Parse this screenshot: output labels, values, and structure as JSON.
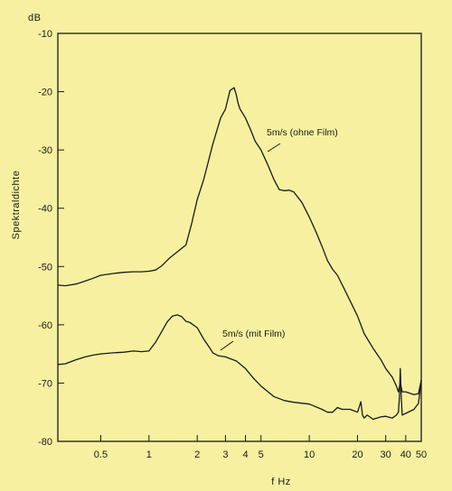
{
  "chart_data": {
    "type": "line",
    "title": "",
    "xlabel": "f  Hz",
    "ylabel": "Spektraldichte",
    "yunit": "dB",
    "x_scale": "log",
    "xlim": [
      0.27,
      50
    ],
    "ylim": [
      -80,
      -10
    ],
    "x_ticks": [
      {
        "v": 0.5,
        "label": "0.5"
      },
      {
        "v": 1,
        "label": "1"
      },
      {
        "v": 2,
        "label": "2"
      },
      {
        "v": 3,
        "label": "3"
      },
      {
        "v": 4,
        "label": "4"
      },
      {
        "v": 5,
        "label": "5"
      },
      {
        "v": 10,
        "label": "10"
      },
      {
        "v": 20,
        "label": "20"
      },
      {
        "v": 30,
        "label": "30"
      },
      {
        "v": 40,
        "label": "40"
      },
      {
        "v": 50,
        "label": "50"
      }
    ],
    "y_ticks": [
      {
        "v": -10,
        "label": "-10"
      },
      {
        "v": -20,
        "label": "-20"
      },
      {
        "v": -30,
        "label": "-30"
      },
      {
        "v": -40,
        "label": "-40"
      },
      {
        "v": -50,
        "label": "-50"
      },
      {
        "v": -60,
        "label": "-60"
      },
      {
        "v": -70,
        "label": "-70"
      },
      {
        "v": -80,
        "label": "-80"
      }
    ],
    "grid": false,
    "series": [
      {
        "name": "5m/s (ohne Film)",
        "x": [
          0.27,
          0.3,
          0.35,
          0.4,
          0.45,
          0.5,
          0.6,
          0.7,
          0.8,
          0.9,
          1.0,
          1.1,
          1.2,
          1.35,
          1.5,
          1.7,
          1.85,
          2.0,
          2.2,
          2.5,
          2.8,
          3.0,
          3.2,
          3.4,
          3.5,
          3.6,
          3.7,
          3.8,
          4.0,
          4.3,
          4.6,
          5.0,
          5.5,
          6.0,
          6.5,
          7.0,
          7.5,
          8.0,
          9.0,
          10,
          11,
          12,
          13,
          14,
          15,
          17,
          20,
          22,
          25,
          28,
          30,
          33,
          35,
          36,
          37,
          38,
          40,
          45,
          48,
          50
        ],
        "values": [
          -53.2,
          -53.3,
          -53.0,
          -52.5,
          -52.0,
          -51.5,
          -51.2,
          -51.0,
          -50.9,
          -50.9,
          -50.8,
          -50.6,
          -49.9,
          -48.5,
          -47.5,
          -46.3,
          -42.5,
          -38.5,
          -35.0,
          -29.0,
          -24.5,
          -23.0,
          -19.8,
          -19.3,
          -20.5,
          -22.0,
          -23.0,
          -23.5,
          -24.5,
          -26.5,
          -28.5,
          -30.0,
          -32.5,
          -35.0,
          -36.8,
          -37.0,
          -36.9,
          -37.2,
          -39.0,
          -41.5,
          -44.0,
          -46.5,
          -49.0,
          -50.5,
          -51.5,
          -54.5,
          -58.5,
          -61.5,
          -64.0,
          -66.0,
          -67.5,
          -69.0,
          -70.5,
          -71.5,
          -70.0,
          -71.5,
          -71.5,
          -72.0,
          -71.8,
          -69.5
        ]
      },
      {
        "name": "5m/s  (mit Film)",
        "x": [
          0.27,
          0.3,
          0.35,
          0.4,
          0.45,
          0.5,
          0.6,
          0.7,
          0.8,
          0.9,
          1.0,
          1.1,
          1.2,
          1.3,
          1.4,
          1.5,
          1.6,
          1.7,
          1.8,
          2.0,
          2.2,
          2.4,
          2.5,
          2.7,
          3.0,
          3.5,
          4.0,
          4.5,
          5.0,
          6.0,
          7.0,
          8.0,
          10,
          12,
          13,
          14,
          15,
          16,
          18,
          20,
          21,
          21.5,
          22,
          23,
          25,
          28,
          30,
          33,
          35,
          36,
          36.5,
          37,
          37.5,
          38,
          40,
          45,
          48,
          50
        ],
        "values": [
          -66.8,
          -66.7,
          -66.0,
          -65.5,
          -65.2,
          -65.0,
          -64.8,
          -64.7,
          -64.5,
          -64.6,
          -64.5,
          -63.0,
          -61.2,
          -59.5,
          -58.5,
          -58.3,
          -58.6,
          -59.4,
          -59.6,
          -60.5,
          -62.5,
          -64.0,
          -64.8,
          -65.3,
          -65.5,
          -66.2,
          -67.5,
          -69.2,
          -70.5,
          -72.3,
          -73.0,
          -73.3,
          -73.6,
          -74.5,
          -75.0,
          -75.0,
          -74.2,
          -74.5,
          -74.5,
          -75.0,
          -73.2,
          -75.5,
          -76.0,
          -75.5,
          -76.2,
          -75.8,
          -75.7,
          -76.0,
          -75.5,
          -75.0,
          -72.5,
          -67.5,
          -72.5,
          -75.5,
          -75.2,
          -74.5,
          -73.5,
          -69.5
        ]
      }
    ],
    "annotations": [
      {
        "text": "5m/s (ohne Film)",
        "series": 0
      },
      {
        "text": "5m/s  (mit Film)",
        "series": 1
      }
    ]
  }
}
